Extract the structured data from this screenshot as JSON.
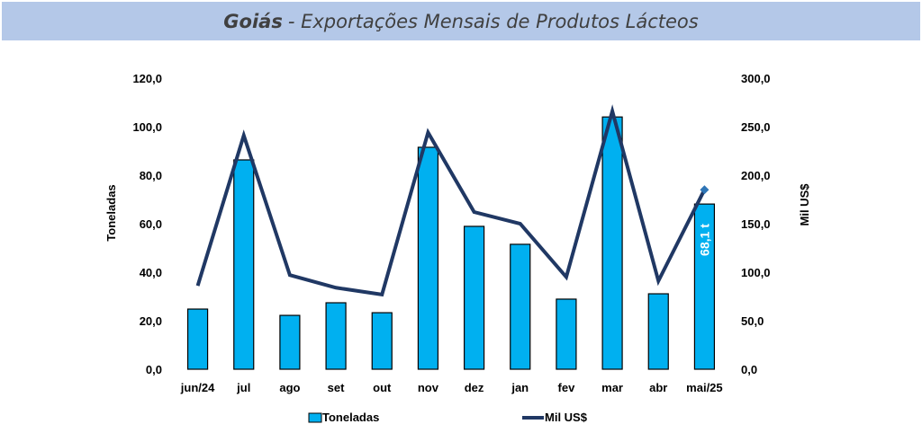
{
  "title": {
    "bold": "Goiás",
    "rest": "- Exportações Mensais de Produtos Lácteos"
  },
  "chart_data": {
    "type": "bar",
    "title": "Goiás - Exportações Mensais de Produtos Lácteos",
    "categories": [
      "jun/24",
      "jul",
      "ago",
      "set",
      "out",
      "nov",
      "dez",
      "jan",
      "fev",
      "mar",
      "abr",
      "mai/25"
    ],
    "series": [
      {
        "name": "Toneladas",
        "type": "bar",
        "axis": "left",
        "color": "#00b0f0",
        "values": [
          24.8,
          86.3,
          22.2,
          27.4,
          23.3,
          91.5,
          58.9,
          51.5,
          28.9,
          104.0,
          31.1,
          68.1
        ]
      },
      {
        "name": "Mil US$",
        "type": "line",
        "axis": "right",
        "color": "#203864",
        "values": [
          86,
          241,
          97,
          84,
          77,
          244,
          162,
          150,
          95,
          266,
          91,
          185
        ]
      }
    ],
    "ylabel": "Toneladas",
    "y2label": "Mil US$",
    "ylim": [
      0,
      120
    ],
    "y2lim": [
      0,
      300
    ],
    "yticks": [
      "0,0",
      "20,0",
      "40,0",
      "60,0",
      "80,0",
      "100,0",
      "120,0"
    ],
    "y2ticks": [
      "0,0",
      "50,0",
      "100,0",
      "150,0",
      "200,0",
      "250,0",
      "300,0"
    ],
    "data_label": "68,1 t",
    "legend": [
      "Toneladas",
      "Mil US$"
    ],
    "legend_position": "bottom",
    "grid": false
  }
}
